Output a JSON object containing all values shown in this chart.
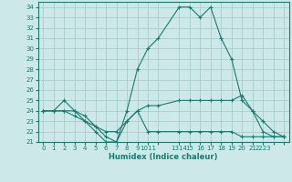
{
  "xlabel": "Humidex (Indice chaleur)",
  "background_color": "#cce8e8",
  "grid_color": "#aacccc",
  "line_color": "#1a7a6e",
  "xlim": [
    -0.5,
    23.5
  ],
  "ylim": [
    21,
    34.5
  ],
  "yticks": [
    21,
    22,
    23,
    24,
    25,
    26,
    27,
    28,
    29,
    30,
    31,
    32,
    33,
    34
  ],
  "x_tick_positions": [
    0,
    1,
    2,
    3,
    4,
    5,
    6,
    7,
    8,
    9,
    10,
    11,
    13,
    14,
    15,
    16,
    17,
    18,
    19,
    20,
    21,
    22,
    23
  ],
  "x_tick_labels": [
    "0",
    "1",
    "2",
    "3",
    "4",
    "5",
    "6",
    "7",
    "8",
    "9",
    "1011",
    "",
    "1314",
    "15",
    "16",
    "17",
    "18",
    "19",
    "20",
    "21",
    "2223",
    "",
    ""
  ],
  "series": [
    {
      "x": [
        0,
        1,
        2,
        3,
        4,
        5,
        6,
        7,
        8,
        9,
        10,
        11,
        13,
        14,
        15,
        16,
        17,
        18,
        19,
        20,
        21,
        22,
        23
      ],
      "y": [
        24,
        24,
        25,
        24,
        23,
        22,
        21,
        21,
        24,
        28,
        30,
        31,
        34,
        34,
        33,
        34,
        31,
        29,
        25,
        24,
        22,
        21.5,
        21.5
      ]
    },
    {
      "x": [
        0,
        1,
        2,
        3,
        4,
        5,
        6,
        7,
        8,
        9,
        10,
        11,
        13,
        14,
        15,
        16,
        17,
        18,
        19,
        20,
        21,
        22,
        23
      ],
      "y": [
        24,
        24,
        24,
        24,
        23.5,
        22.5,
        22,
        22,
        23,
        24,
        24.5,
        24.5,
        25,
        25,
        25,
        25,
        25,
        25,
        25.5,
        24,
        23,
        22,
        21.5
      ]
    },
    {
      "x": [
        0,
        1,
        2,
        3,
        4,
        5,
        6,
        7,
        8,
        9,
        10,
        11,
        13,
        14,
        15,
        16,
        17,
        18,
        19,
        20,
        21,
        22,
        23
      ],
      "y": [
        24,
        24,
        24,
        23.5,
        23,
        22.5,
        21.5,
        21,
        23,
        24,
        22,
        22,
        22,
        22,
        22,
        22,
        22,
        22,
        21.5,
        21.5,
        21.5,
        21.5,
        21.5
      ]
    }
  ]
}
